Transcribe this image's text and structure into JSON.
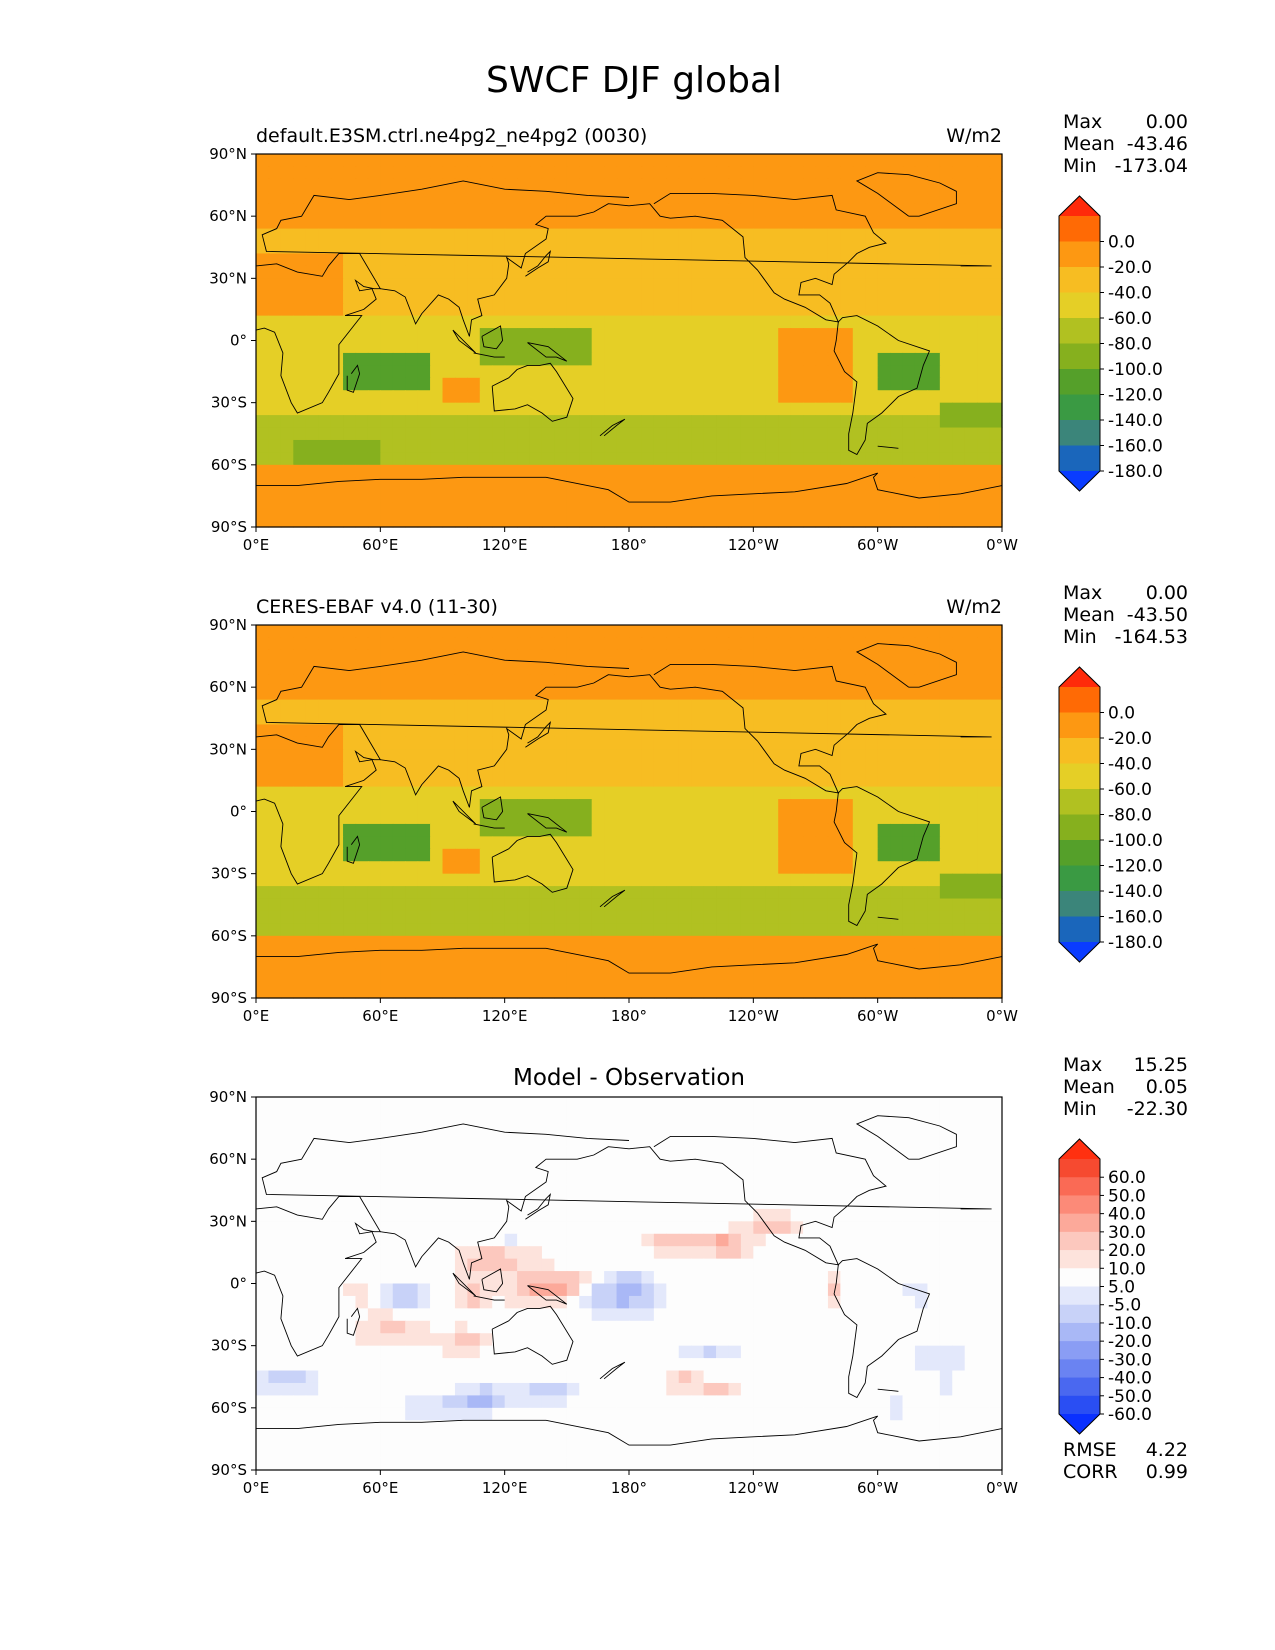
{
  "figure": {
    "title": "SWCF DJF global",
    "x_ticks": [
      "0°E",
      "60°E",
      "120°E",
      "180°",
      "120°W",
      "60°W",
      "0°W"
    ],
    "y_ticks": [
      "90°N",
      "60°N",
      "30°N",
      "0°",
      "30°S",
      "60°S",
      "90°S"
    ]
  },
  "chart_data": [
    {
      "type": "heatmap",
      "title": "default.E3SM.ctrl.ne4pg2_ne4pg2 (0030)",
      "units": "W/m2",
      "projection": "global lat-lon map with coastlines",
      "xlim": [
        0,
        360
      ],
      "ylim": [
        -90,
        90
      ],
      "stats": [
        {
          "label": "Max",
          "value": "0.00"
        },
        {
          "label": "Mean",
          "value": "-43.46"
        },
        {
          "label": "Min",
          "value": "-173.04"
        }
      ],
      "colorbar": {
        "extend": "both",
        "labels": [
          "0.0",
          "-20.0",
          "-40.0",
          "-60.0",
          "-80.0",
          "-100.0",
          "-120.0",
          "-140.0",
          "-160.0",
          "-180.0"
        ],
        "colors": [
          "#ff2a0a",
          "#ff6a05",
          "#fd9812",
          "#f7bd22",
          "#e5cf26",
          "#b1c121",
          "#86b01e",
          "#55a02a",
          "#3a9a43",
          "#3b857a",
          "#1a66bb",
          "#0a3cff"
        ]
      }
    },
    {
      "type": "heatmap",
      "title": "CERES-EBAF v4.0 (11-30)",
      "units": "W/m2",
      "projection": "global lat-lon map with coastlines",
      "xlim": [
        0,
        360
      ],
      "ylim": [
        -90,
        90
      ],
      "stats": [
        {
          "label": "Max",
          "value": "0.00"
        },
        {
          "label": "Mean",
          "value": "-43.50"
        },
        {
          "label": "Min",
          "value": "-164.53"
        }
      ],
      "colorbar": {
        "extend": "both",
        "labels": [
          "0.0",
          "-20.0",
          "-40.0",
          "-60.0",
          "-80.0",
          "-100.0",
          "-120.0",
          "-140.0",
          "-160.0",
          "-180.0"
        ],
        "colors": [
          "#ff2a0a",
          "#ff6a05",
          "#fd9812",
          "#f7bd22",
          "#e5cf26",
          "#b1c121",
          "#86b01e",
          "#55a02a",
          "#3a9a43",
          "#3b857a",
          "#1a66bb",
          "#0a3cff"
        ]
      }
    },
    {
      "type": "heatmap",
      "title": "Model - Observation",
      "units": "",
      "projection": "global lat-lon map with coastlines",
      "xlim": [
        0,
        360
      ],
      "ylim": [
        -90,
        90
      ],
      "stats": [
        {
          "label": "Max",
          "value": "15.25"
        },
        {
          "label": "Mean",
          "value": "0.05"
        },
        {
          "label": "Min",
          "value": "-22.30"
        }
      ],
      "metrics": [
        {
          "label": "RMSE",
          "value": "4.22"
        },
        {
          "label": "CORR",
          "value": "0.99"
        }
      ],
      "colorbar": {
        "extend": "both",
        "labels": [
          "60.0",
          "50.0",
          "40.0",
          "30.0",
          "20.0",
          "10.0",
          "5.0",
          "-5.0",
          "-10.0",
          "-20.0",
          "-30.0",
          "-40.0",
          "-50.0",
          "-60.0"
        ],
        "colors": [
          "#ff3010",
          "#f64a30",
          "#fa6a55",
          "#fc8a78",
          "#fca99a",
          "#fcc8be",
          "#fde3dc",
          "#fdfdfd",
          "#e3e8fb",
          "#c8d2f8",
          "#a9b8f6",
          "#8a9df4",
          "#6a83f2",
          "#4a68f0",
          "#2a4ef3",
          "#0a30ff"
        ]
      }
    }
  ]
}
